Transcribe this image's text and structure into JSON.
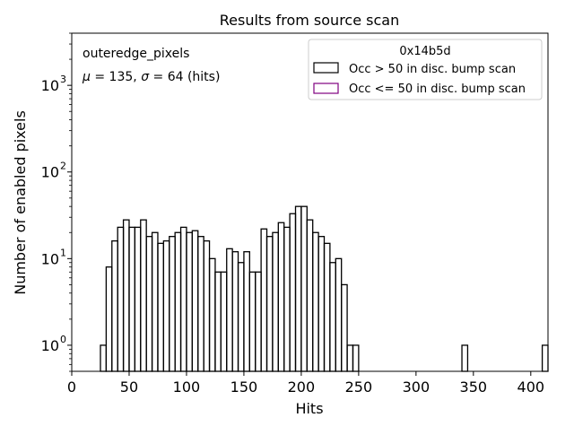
{
  "chart_data": {
    "type": "histogram",
    "title": "Results from source scan",
    "xlabel": "Hits",
    "ylabel": "Number of enabled pixels",
    "xlim": [
      0,
      415
    ],
    "ylim": [
      0.5,
      4000
    ],
    "yscale": "log",
    "grid": false,
    "legend_placement": "top-right",
    "x_ticks": [
      "0",
      "50",
      "100",
      "150",
      "200",
      "250",
      "300",
      "350",
      "400"
    ],
    "y_ticks": [
      {
        "value": 1,
        "base": "10",
        "exp": "0"
      },
      {
        "value": 10,
        "base": "10",
        "exp": "1"
      },
      {
        "value": 100,
        "base": "10",
        "exp": "2"
      },
      {
        "value": 1000,
        "base": "10",
        "exp": "3"
      }
    ],
    "annotations": {
      "line1": "outeredge_pixels",
      "line2_mu_symbol": "μ",
      "line2_mu_value": " = 135, ",
      "line2_sigma_symbol": "σ",
      "line2_sigma_value": " = 64 (hits)"
    },
    "legend": {
      "title": "0x14b5d",
      "entries": [
        {
          "label": "Occ > 50 in disc. bump scan",
          "color": "#000000"
        },
        {
          "label": "Occ <= 50 in disc. bump scan",
          "color": "#800080"
        }
      ]
    },
    "bin_width": 5,
    "series": [
      {
        "name": "Occ > 50 in disc. bump scan",
        "color": "#000000",
        "bins": [
          {
            "x": 25,
            "y": 1
          },
          {
            "x": 30,
            "y": 8
          },
          {
            "x": 35,
            "y": 16
          },
          {
            "x": 40,
            "y": 23
          },
          {
            "x": 45,
            "y": 28
          },
          {
            "x": 50,
            "y": 23
          },
          {
            "x": 55,
            "y": 23
          },
          {
            "x": 60,
            "y": 28
          },
          {
            "x": 65,
            "y": 18
          },
          {
            "x": 70,
            "y": 20
          },
          {
            "x": 75,
            "y": 15
          },
          {
            "x": 80,
            "y": 16
          },
          {
            "x": 85,
            "y": 18
          },
          {
            "x": 90,
            "y": 20
          },
          {
            "x": 95,
            "y": 23
          },
          {
            "x": 100,
            "y": 20
          },
          {
            "x": 105,
            "y": 21
          },
          {
            "x": 110,
            "y": 18
          },
          {
            "x": 115,
            "y": 16
          },
          {
            "x": 120,
            "y": 10
          },
          {
            "x": 125,
            "y": 7
          },
          {
            "x": 130,
            "y": 7
          },
          {
            "x": 135,
            "y": 13
          },
          {
            "x": 140,
            "y": 12
          },
          {
            "x": 145,
            "y": 9
          },
          {
            "x": 150,
            "y": 12
          },
          {
            "x": 155,
            "y": 7
          },
          {
            "x": 160,
            "y": 7
          },
          {
            "x": 165,
            "y": 22
          },
          {
            "x": 170,
            "y": 18
          },
          {
            "x": 175,
            "y": 20
          },
          {
            "x": 180,
            "y": 26
          },
          {
            "x": 185,
            "y": 23
          },
          {
            "x": 190,
            "y": 33
          },
          {
            "x": 195,
            "y": 40
          },
          {
            "x": 200,
            "y": 40
          },
          {
            "x": 205,
            "y": 28
          },
          {
            "x": 210,
            "y": 20
          },
          {
            "x": 215,
            "y": 18
          },
          {
            "x": 220,
            "y": 15
          },
          {
            "x": 225,
            "y": 9
          },
          {
            "x": 230,
            "y": 10
          },
          {
            "x": 235,
            "y": 5
          },
          {
            "x": 240,
            "y": 1
          },
          {
            "x": 245,
            "y": 1
          },
          {
            "x": 340,
            "y": 1
          },
          {
            "x": 410,
            "y": 1
          }
        ]
      },
      {
        "name": "Occ <= 50 in disc. bump scan",
        "color": "#800080",
        "bins": []
      }
    ]
  }
}
